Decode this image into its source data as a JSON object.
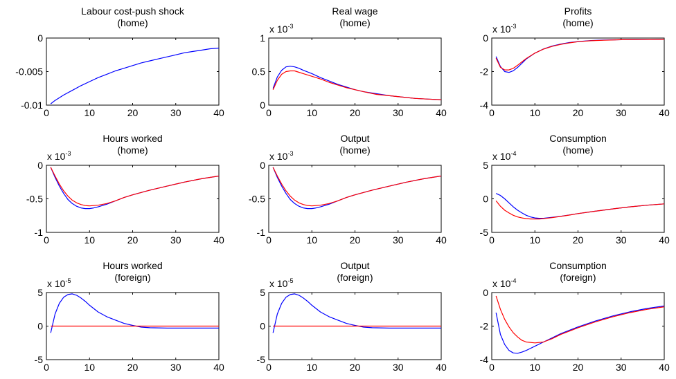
{
  "chart_data": [
    {
      "type": "line",
      "title": "Labour cost-push shock",
      "subtitle": "(home)",
      "exponent": "",
      "xlim": [
        0,
        40
      ],
      "ylim": [
        -0.01,
        0
      ],
      "xticks": [
        0,
        10,
        20,
        30,
        40
      ],
      "yticks": [
        0,
        -0.005,
        -0.01
      ],
      "ytick_labels": [
        "0",
        "-0.005",
        "-0.01"
      ],
      "grid": false,
      "series": [
        {
          "color": "#0000ff",
          "x": [
            1,
            2,
            4,
            6,
            8,
            10,
            12,
            14,
            16,
            18,
            20,
            22,
            24,
            26,
            28,
            30,
            32,
            34,
            36,
            38,
            40
          ],
          "values": [
            -0.0098,
            -0.0093,
            -0.0085,
            -0.0078,
            -0.0071,
            -0.0065,
            -0.0059,
            -0.0054,
            -0.0049,
            -0.0045,
            -0.0041,
            -0.0037,
            -0.0034,
            -0.0031,
            -0.0028,
            -0.0025,
            -0.0022,
            -0.002,
            -0.0018,
            -0.0016,
            -0.0015
          ]
        }
      ]
    },
    {
      "type": "line",
      "title": "Real wage",
      "subtitle": "(home)",
      "exponent": "-3",
      "xlim": [
        0,
        40
      ],
      "ylim": [
        0,
        1
      ],
      "xticks": [
        0,
        10,
        20,
        30,
        40
      ],
      "yticks": [
        1,
        0.5,
        0
      ],
      "ytick_labels": [
        "1",
        "0.5",
        "0"
      ],
      "grid": false,
      "series": [
        {
          "color": "#0000ff",
          "x": [
            1,
            2,
            3,
            4,
            5,
            6,
            7,
            8,
            10,
            12,
            14,
            16,
            18,
            20,
            22,
            25,
            28,
            31,
            34,
            37,
            40
          ],
          "values": [
            0.25,
            0.42,
            0.52,
            0.57,
            0.58,
            0.57,
            0.55,
            0.52,
            0.47,
            0.41,
            0.36,
            0.31,
            0.27,
            0.23,
            0.2,
            0.17,
            0.14,
            0.12,
            0.1,
            0.09,
            0.08
          ]
        },
        {
          "color": "#ff0000",
          "x": [
            1,
            2,
            3,
            4,
            5,
            6,
            7,
            8,
            10,
            12,
            14,
            16,
            18,
            20,
            22,
            25,
            28,
            31,
            34,
            37,
            40
          ],
          "values": [
            0.23,
            0.37,
            0.46,
            0.5,
            0.51,
            0.51,
            0.49,
            0.47,
            0.43,
            0.39,
            0.34,
            0.3,
            0.26,
            0.23,
            0.2,
            0.16,
            0.14,
            0.12,
            0.1,
            0.09,
            0.08
          ]
        }
      ]
    },
    {
      "type": "line",
      "title": "Profits",
      "subtitle": "(home)",
      "exponent": "-3",
      "xlim": [
        0,
        40
      ],
      "ylim": [
        -4,
        0
      ],
      "xticks": [
        0,
        10,
        20,
        30,
        40
      ],
      "yticks": [
        0,
        -2,
        -4
      ],
      "ytick_labels": [
        "0",
        "-2",
        "-4"
      ],
      "grid": false,
      "series": [
        {
          "color": "#0000ff",
          "x": [
            1,
            2,
            3,
            4,
            5,
            6,
            7,
            8,
            10,
            12,
            14,
            16,
            18,
            20,
            23,
            26,
            30,
            35,
            40
          ],
          "values": [
            -1.1,
            -1.7,
            -2.0,
            -2.05,
            -1.95,
            -1.75,
            -1.5,
            -1.25,
            -0.9,
            -0.65,
            -0.48,
            -0.36,
            -0.27,
            -0.21,
            -0.15,
            -0.12,
            -0.1,
            -0.09,
            -0.08
          ]
        },
        {
          "color": "#ff0000",
          "x": [
            1,
            2,
            3,
            4,
            5,
            6,
            7,
            8,
            10,
            12,
            14,
            16,
            18,
            20,
            23,
            26,
            30,
            35,
            40
          ],
          "values": [
            -1.2,
            -1.75,
            -1.9,
            -1.9,
            -1.8,
            -1.62,
            -1.42,
            -1.22,
            -0.9,
            -0.66,
            -0.5,
            -0.38,
            -0.29,
            -0.22,
            -0.16,
            -0.13,
            -0.1,
            -0.09,
            -0.08
          ]
        }
      ]
    },
    {
      "type": "line",
      "title": "Hours worked",
      "subtitle": "(home)",
      "exponent": "-3",
      "xlim": [
        0,
        40
      ],
      "ylim": [
        -1,
        0
      ],
      "xticks": [
        0,
        10,
        20,
        30,
        40
      ],
      "yticks": [
        0,
        -0.5,
        -1
      ],
      "ytick_labels": [
        "0",
        "-0.5",
        "-1"
      ],
      "grid": false,
      "series": [
        {
          "color": "#0000ff",
          "x": [
            1,
            2,
            3,
            4,
            5,
            6,
            7,
            8,
            9,
            10,
            11,
            12,
            14,
            16,
            18,
            20,
            24,
            28,
            32,
            36,
            40
          ],
          "values": [
            -0.03,
            -0.18,
            -0.31,
            -0.42,
            -0.51,
            -0.57,
            -0.61,
            -0.635,
            -0.645,
            -0.645,
            -0.635,
            -0.62,
            -0.58,
            -0.53,
            -0.48,
            -0.44,
            -0.37,
            -0.31,
            -0.25,
            -0.2,
            -0.16
          ]
        },
        {
          "color": "#ff0000",
          "x": [
            1,
            2,
            3,
            4,
            5,
            6,
            7,
            8,
            9,
            10,
            11,
            12,
            14,
            16,
            18,
            20,
            24,
            28,
            32,
            36,
            40
          ],
          "values": [
            -0.03,
            -0.16,
            -0.28,
            -0.38,
            -0.46,
            -0.52,
            -0.56,
            -0.585,
            -0.6,
            -0.605,
            -0.6,
            -0.595,
            -0.57,
            -0.53,
            -0.48,
            -0.44,
            -0.37,
            -0.31,
            -0.25,
            -0.2,
            -0.16
          ]
        }
      ]
    },
    {
      "type": "line",
      "title": "Output",
      "subtitle": "(home)",
      "exponent": "-3",
      "xlim": [
        0,
        40
      ],
      "ylim": [
        -1,
        0
      ],
      "xticks": [
        0,
        10,
        20,
        30,
        40
      ],
      "yticks": [
        0,
        -0.5,
        -1
      ],
      "ytick_labels": [
        "0",
        "-0.5",
        "-1"
      ],
      "grid": false,
      "series": [
        {
          "color": "#0000ff",
          "x": [
            1,
            2,
            3,
            4,
            5,
            6,
            7,
            8,
            9,
            10,
            11,
            12,
            14,
            16,
            18,
            20,
            24,
            28,
            32,
            36,
            40
          ],
          "values": [
            -0.03,
            -0.18,
            -0.31,
            -0.42,
            -0.51,
            -0.57,
            -0.61,
            -0.635,
            -0.645,
            -0.645,
            -0.635,
            -0.62,
            -0.58,
            -0.53,
            -0.48,
            -0.44,
            -0.37,
            -0.31,
            -0.25,
            -0.2,
            -0.16
          ]
        },
        {
          "color": "#ff0000",
          "x": [
            1,
            2,
            3,
            4,
            5,
            6,
            7,
            8,
            9,
            10,
            11,
            12,
            14,
            16,
            18,
            20,
            24,
            28,
            32,
            36,
            40
          ],
          "values": [
            -0.03,
            -0.16,
            -0.28,
            -0.38,
            -0.46,
            -0.52,
            -0.56,
            -0.585,
            -0.6,
            -0.605,
            -0.6,
            -0.595,
            -0.57,
            -0.53,
            -0.48,
            -0.44,
            -0.37,
            -0.31,
            -0.25,
            -0.2,
            -0.16
          ]
        }
      ]
    },
    {
      "type": "line",
      "title": "Consumption",
      "subtitle": "(home)",
      "exponent": "-4",
      "xlim": [
        0,
        40
      ],
      "ylim": [
        -5,
        5
      ],
      "xticks": [
        0,
        10,
        20,
        30,
        40
      ],
      "yticks": [
        5,
        0,
        -5
      ],
      "ytick_labels": [
        "5",
        "0",
        "-5"
      ],
      "grid": false,
      "series": [
        {
          "color": "#0000ff",
          "x": [
            1,
            2,
            3,
            4,
            5,
            6,
            7,
            8,
            9,
            10,
            11,
            12,
            14,
            16,
            18,
            20,
            24,
            28,
            32,
            36,
            40
          ],
          "values": [
            0.8,
            0.5,
            0.0,
            -0.6,
            -1.2,
            -1.7,
            -2.1,
            -2.45,
            -2.7,
            -2.85,
            -2.9,
            -2.9,
            -2.75,
            -2.6,
            -2.4,
            -2.2,
            -1.85,
            -1.5,
            -1.2,
            -0.95,
            -0.75
          ]
        },
        {
          "color": "#ff0000",
          "x": [
            1,
            2,
            3,
            4,
            5,
            6,
            7,
            8,
            9,
            10,
            11,
            12,
            14,
            16,
            18,
            20,
            24,
            28,
            32,
            36,
            40
          ],
          "values": [
            -0.3,
            -1.1,
            -1.7,
            -2.1,
            -2.45,
            -2.7,
            -2.85,
            -2.95,
            -3.0,
            -3.0,
            -3.0,
            -2.95,
            -2.8,
            -2.62,
            -2.42,
            -2.2,
            -1.85,
            -1.5,
            -1.2,
            -0.95,
            -0.75
          ]
        }
      ]
    },
    {
      "type": "line",
      "title": "Hours worked",
      "subtitle": "(foreign)",
      "exponent": "-5",
      "xlim": [
        0,
        40
      ],
      "ylim": [
        -5,
        5
      ],
      "xticks": [
        0,
        10,
        20,
        30,
        40
      ],
      "yticks": [
        5,
        0,
        -5
      ],
      "ytick_labels": [
        "5",
        "0",
        "-5"
      ],
      "grid": false,
      "series": [
        {
          "color": "#0000ff",
          "x": [
            1,
            2,
            3,
            4,
            5,
            6,
            7,
            8,
            9,
            10,
            12,
            14,
            16,
            18,
            20,
            22,
            24,
            28,
            32,
            36,
            40
          ],
          "values": [
            -1.0,
            1.8,
            3.4,
            4.3,
            4.7,
            4.8,
            4.6,
            4.2,
            3.7,
            3.1,
            2.1,
            1.4,
            0.9,
            0.4,
            0.1,
            -0.15,
            -0.25,
            -0.3,
            -0.3,
            -0.3,
            -0.3
          ]
        },
        {
          "color": "#ff0000",
          "x": [
            1,
            40
          ],
          "values": [
            0,
            0
          ]
        }
      ]
    },
    {
      "type": "line",
      "title": "Output",
      "subtitle": "(foreign)",
      "exponent": "-5",
      "xlim": [
        0,
        40
      ],
      "ylim": [
        -5,
        5
      ],
      "xticks": [
        0,
        10,
        20,
        30,
        40
      ],
      "yticks": [
        5,
        0,
        -5
      ],
      "ytick_labels": [
        "5",
        "0",
        "-5"
      ],
      "grid": false,
      "series": [
        {
          "color": "#0000ff",
          "x": [
            1,
            2,
            3,
            4,
            5,
            6,
            7,
            8,
            9,
            10,
            12,
            14,
            16,
            18,
            20,
            22,
            24,
            28,
            32,
            36,
            40
          ],
          "values": [
            -1.0,
            1.8,
            3.4,
            4.3,
            4.7,
            4.8,
            4.6,
            4.2,
            3.7,
            3.1,
            2.1,
            1.4,
            0.9,
            0.4,
            0.1,
            -0.15,
            -0.25,
            -0.3,
            -0.3,
            -0.3,
            -0.3
          ]
        },
        {
          "color": "#ff0000",
          "x": [
            1,
            40
          ],
          "values": [
            0,
            0
          ]
        }
      ]
    },
    {
      "type": "line",
      "title": "Consumption",
      "subtitle": "(foreign)",
      "exponent": "-4",
      "xlim": [
        0,
        40
      ],
      "ylim": [
        -4,
        0
      ],
      "xticks": [
        0,
        10,
        20,
        30,
        40
      ],
      "yticks": [
        0,
        -2,
        -4
      ],
      "ytick_labels": [
        "0",
        "-2",
        "-4"
      ],
      "grid": false,
      "series": [
        {
          "color": "#0000ff",
          "x": [
            1,
            2,
            3,
            4,
            5,
            6,
            7,
            8,
            10,
            12,
            14,
            16,
            18,
            20,
            24,
            28,
            32,
            36,
            40
          ],
          "values": [
            -1.2,
            -2.5,
            -3.1,
            -3.45,
            -3.6,
            -3.62,
            -3.55,
            -3.45,
            -3.2,
            -2.95,
            -2.7,
            -2.45,
            -2.25,
            -2.05,
            -1.7,
            -1.4,
            -1.15,
            -0.95,
            -0.8
          ]
        },
        {
          "color": "#ff0000",
          "x": [
            1,
            2,
            3,
            4,
            5,
            6,
            7,
            8,
            10,
            12,
            14,
            16,
            18,
            20,
            24,
            28,
            32,
            36,
            40
          ],
          "values": [
            -0.2,
            -1.0,
            -1.6,
            -2.05,
            -2.4,
            -2.65,
            -2.85,
            -2.95,
            -3.0,
            -2.95,
            -2.75,
            -2.5,
            -2.3,
            -2.1,
            -1.75,
            -1.45,
            -1.2,
            -1.0,
            -0.85
          ]
        }
      ]
    }
  ]
}
